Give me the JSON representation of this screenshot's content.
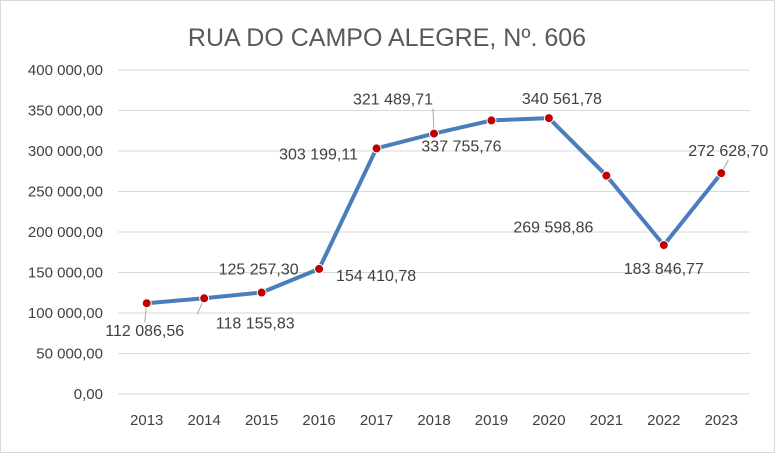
{
  "chart_data": {
    "type": "line",
    "title": "RUA DO CAMPO ALEGRE, Nº. 606",
    "xlabel": "",
    "ylabel": "",
    "categories": [
      "2013",
      "2014",
      "2015",
      "2016",
      "2017",
      "2018",
      "2019",
      "2020",
      "2021",
      "2022",
      "2023"
    ],
    "series": [
      {
        "values": [
          112086.56,
          118155.83,
          125257.3,
          154410.78,
          303199.11,
          321489.71,
          337755.76,
          340561.78,
          269598.86,
          183846.77,
          272628.7
        ],
        "data_labels": [
          "112 086,56",
          "118 155,83",
          "125 257,30",
          "154 410,78",
          "303 199,11",
          "321 489,71",
          "337 755,76",
          "340 561,78",
          "269 598,86",
          "183 846,77",
          "272 628,70"
        ],
        "line_color": "#4a7ebb",
        "marker_color": "#c00000"
      }
    ],
    "ylim": [
      0,
      400000
    ],
    "yticks": [
      0,
      50000,
      100000,
      150000,
      200000,
      250000,
      300000,
      350000,
      400000
    ],
    "ytick_labels": [
      "0,00",
      "50 000,00",
      "100 000,00",
      "150 000,00",
      "200 000,00",
      "250 000,00",
      "300 000,00",
      "350 000,00",
      "400 000,00"
    ],
    "grid": true,
    "legend": "none"
  }
}
